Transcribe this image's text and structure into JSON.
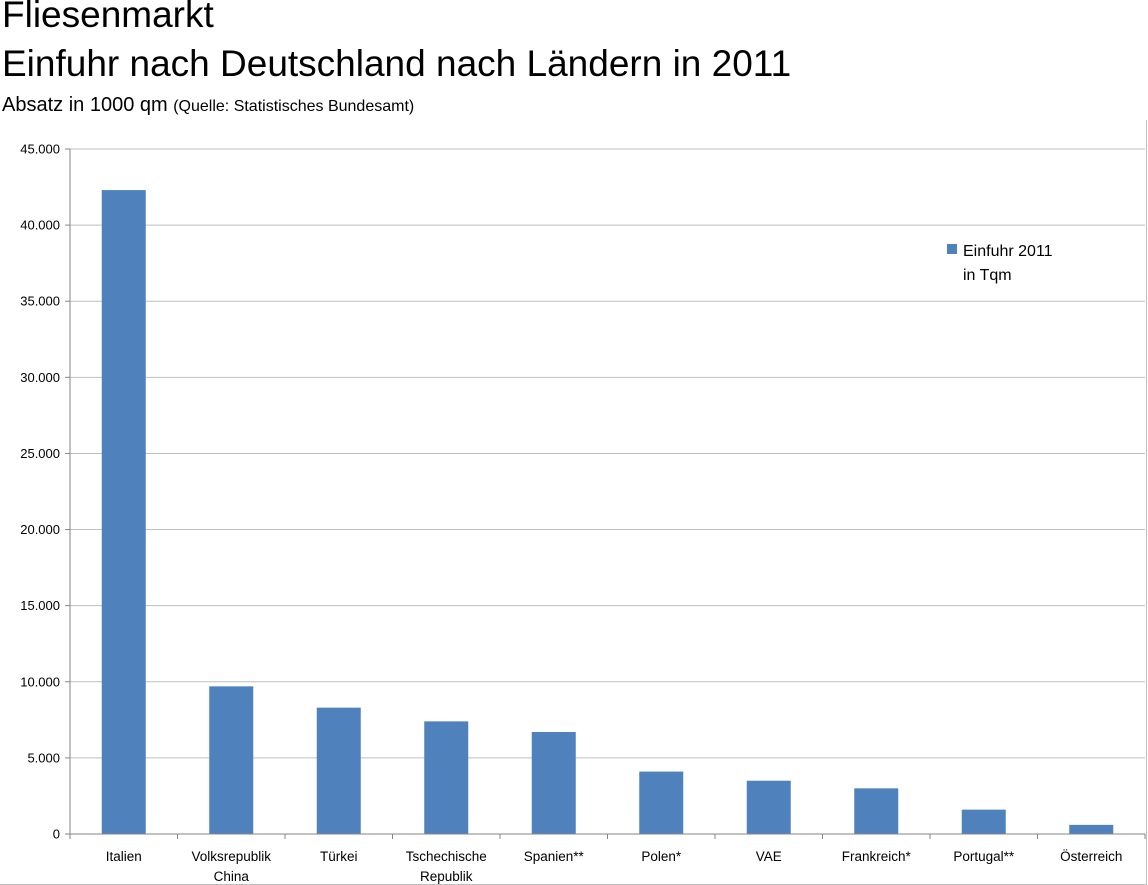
{
  "title_line1": "Fliesenmarkt",
  "title_line2": "Einfuhr nach Deutschland nach Ländern in 2011",
  "subtitle": "Absatz in 1000 qm",
  "source": "(Quelle: Statistisches Bundesamt)",
  "colors": {
    "bar": "#4f81bd",
    "grid": "#bfbfbf",
    "axis": "#868686"
  },
  "chart_data": {
    "type": "bar",
    "categories": [
      [
        "Italien"
      ],
      [
        "Volksrepublik",
        "China"
      ],
      [
        "Türkei"
      ],
      [
        "Tschechische",
        "Republik"
      ],
      [
        "Spanien**"
      ],
      [
        "Polen*"
      ],
      [
        "VAE"
      ],
      [
        "Frankreich*"
      ],
      [
        "Portugal**"
      ],
      [
        "Österreich"
      ]
    ],
    "series": [
      {
        "name_lines": [
          "Einfuhr 2011",
          "in Tqm"
        ],
        "values": [
          42300,
          9700,
          8300,
          7400,
          6700,
          4100,
          3500,
          3000,
          1600,
          600
        ]
      }
    ],
    "ylim": [
      0,
      45000
    ],
    "yticks": [
      0,
      5000,
      10000,
      15000,
      20000,
      25000,
      30000,
      35000,
      40000,
      45000
    ],
    "ytick_labels": [
      "0",
      "5.000",
      "10.000",
      "15.000",
      "20.000",
      "25.000",
      "30.000",
      "35.000",
      "40.000",
      "45.000"
    ],
    "grid": true,
    "legend_position": "top-right"
  }
}
